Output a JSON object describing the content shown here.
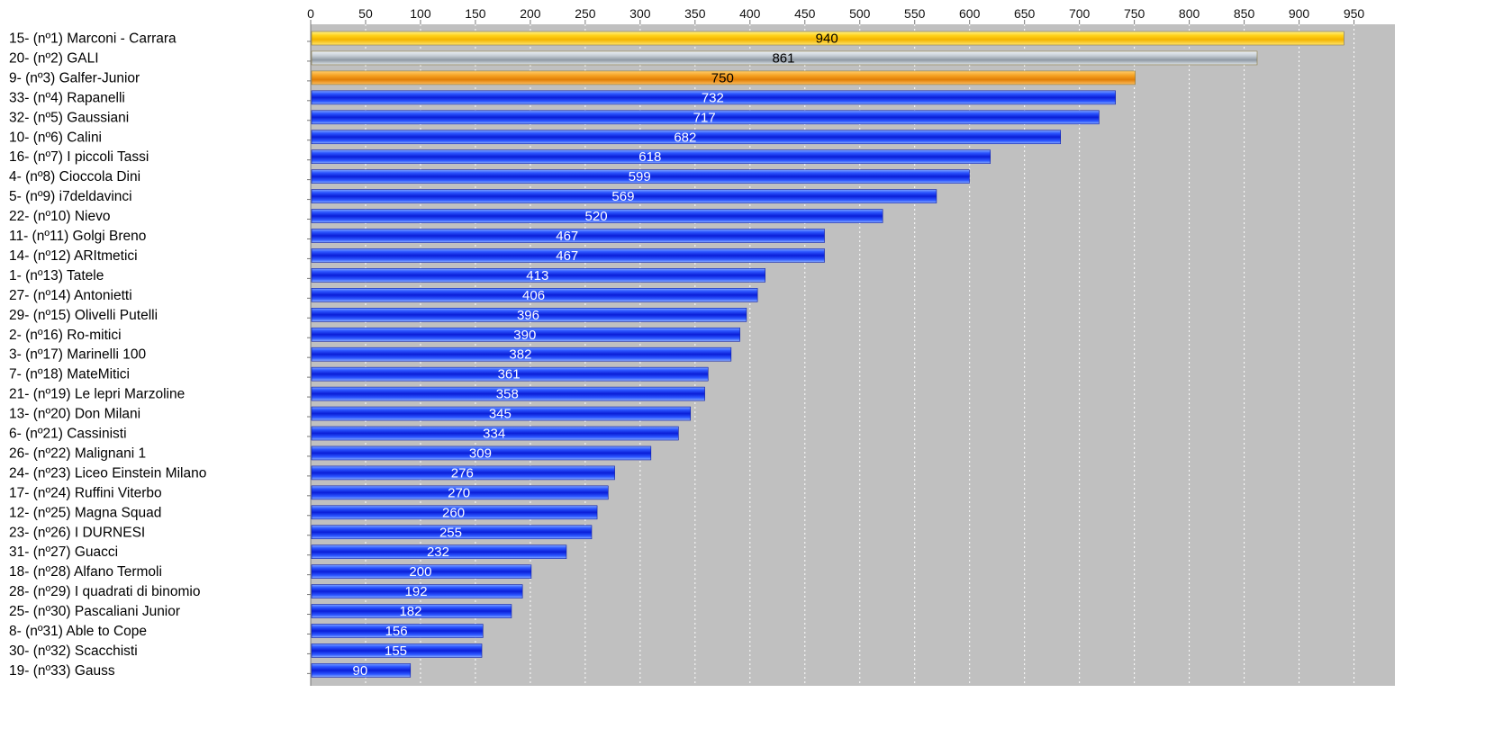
{
  "chart_data": {
    "type": "bar",
    "orientation": "horizontal",
    "title": "",
    "xlabel": "",
    "ylabel": "",
    "xlim": [
      0,
      1000
    ],
    "x_ticks": [
      0,
      50,
      100,
      150,
      200,
      250,
      300,
      350,
      400,
      450,
      500,
      550,
      600,
      650,
      700,
      750,
      800,
      850,
      900,
      950
    ],
    "x_axis_position": "top",
    "grid": true,
    "legend": "none",
    "colors": {
      "plot_background": "#c0c0c0",
      "gold": "#f5c000",
      "silver": "#b4bcc4",
      "bronze": "#f0900c",
      "default": "#1a3cff"
    },
    "categories": [
      "15- (nº1) Marconi - Carrara",
      "20- (nº2) GALI",
      "9- (nº3) Galfer-Junior",
      "33- (nº4) Rapanelli",
      "32- (nº5) Gaussiani",
      "10- (nº6) Calini",
      "16- (nº7) I piccoli Tassi",
      "4- (nº8) Cioccola Dini",
      "5- (nº9) i7deldavinci",
      "22- (nº10) Nievo",
      "11- (nº11) Golgi Breno",
      "14- (nº12) ARItmetici",
      "1- (nº13) Tatele",
      "27- (nº14) Antonietti",
      "29- (nº15) Olivelli Putelli",
      "2- (nº16) Ro-mitici",
      "3- (nº17) Marinelli 100",
      "7- (nº18) MateMitici",
      "21- (nº19) Le lepri Marzoline",
      "13- (nº20) Don Milani",
      "6- (nº21) Cassinisti",
      "26- (nº22) Malignani 1",
      "24- (nº23) Liceo Einstein Milano",
      "17- (nº24) Ruffini Viterbo",
      "12- (nº25) Magna Squad",
      "23- (nº26) I DURNESI",
      "31- (nº27) Guacci",
      "18- (nº28) Alfano Termoli",
      "28- (nº29) I quadrati di binomio",
      "25- (nº30) Pascaliani Junior",
      "8- (nº31) Able to Cope",
      "30- (nº32) Scacchisti",
      "19- (nº33) Gauss"
    ],
    "values": [
      940,
      861,
      750,
      732,
      717,
      682,
      618,
      599,
      569,
      520,
      467,
      467,
      413,
      406,
      396,
      390,
      382,
      361,
      358,
      345,
      334,
      309,
      276,
      270,
      260,
      255,
      232,
      200,
      192,
      182,
      156,
      155,
      90
    ],
    "bar_colors": [
      "gold",
      "silver",
      "bronze",
      "default",
      "default",
      "default",
      "default",
      "default",
      "default",
      "default",
      "default",
      "default",
      "default",
      "default",
      "default",
      "default",
      "default",
      "default",
      "default",
      "default",
      "default",
      "default",
      "default",
      "default",
      "default",
      "default",
      "default",
      "default",
      "default",
      "default",
      "default",
      "default",
      "default"
    ],
    "value_labels": [
      "940",
      "861",
      "750",
      "732",
      "717",
      "682",
      "618",
      "599",
      "569",
      "520",
      "467",
      "467",
      "413",
      "406",
      "396",
      "390",
      "382",
      "361",
      "358",
      "345",
      "334",
      "309",
      "276",
      "270",
      "260",
      "255",
      "232",
      "200",
      "192",
      "182",
      "156",
      "155",
      "90"
    ]
  }
}
